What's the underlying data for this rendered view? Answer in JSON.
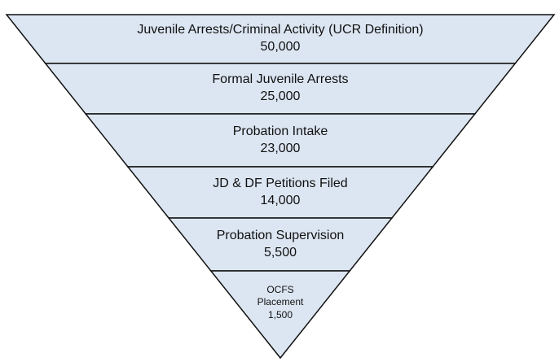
{
  "stages": [
    {
      "label": "Juvenile Arrests/Criminal Activity (UCR Definition)",
      "value": "50,000"
    },
    {
      "label": "Formal Juvenile Arrests",
      "value": "25,000"
    },
    {
      "label": "Probation Intake",
      "value": "23,000"
    },
    {
      "label": "JD & DF Petitions Filed",
      "value": "14,000"
    },
    {
      "label": "Probation Supervision",
      "value": "5,500"
    },
    {
      "label": "OCFS Placement",
      "value": "1,500"
    }
  ]
}
